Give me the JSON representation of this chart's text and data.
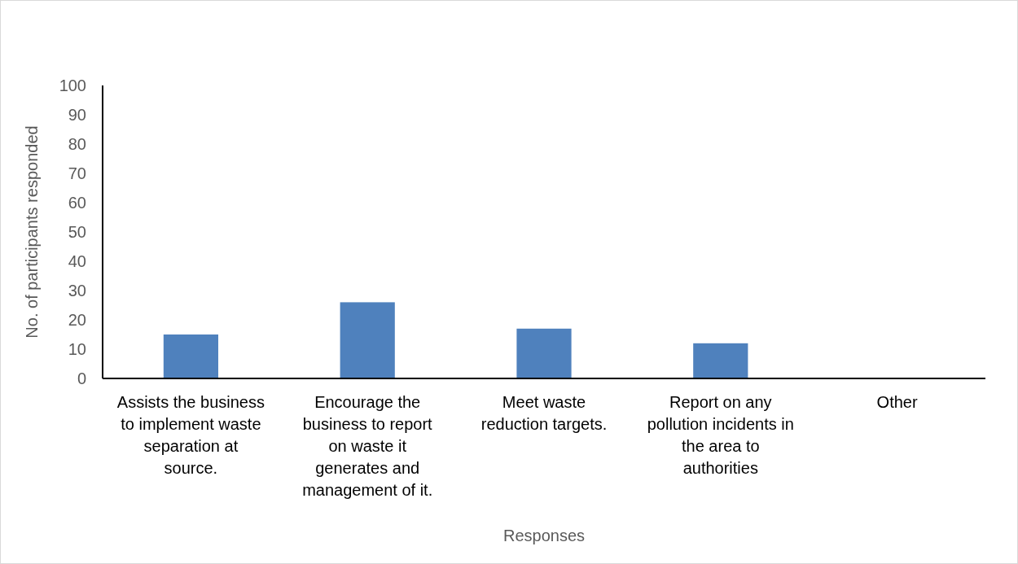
{
  "chart_data": {
    "type": "bar",
    "categories": [
      "Assists the business to implement waste separation at source.",
      "Encourage the business to report on waste it generates and management of it.",
      "Meet waste reduction targets.",
      "Report on any pollution incidents in the area to authorities",
      "Other"
    ],
    "values": [
      15,
      26,
      17,
      12,
      0
    ],
    "color": "#4f81bd",
    "xlabel": "Responses",
    "ylabel": "No. of participants responded",
    "ylim": [
      0,
      100
    ],
    "yticks": [
      0,
      10,
      20,
      30,
      40,
      50,
      60,
      70,
      80,
      90,
      100
    ],
    "grid": false
  }
}
